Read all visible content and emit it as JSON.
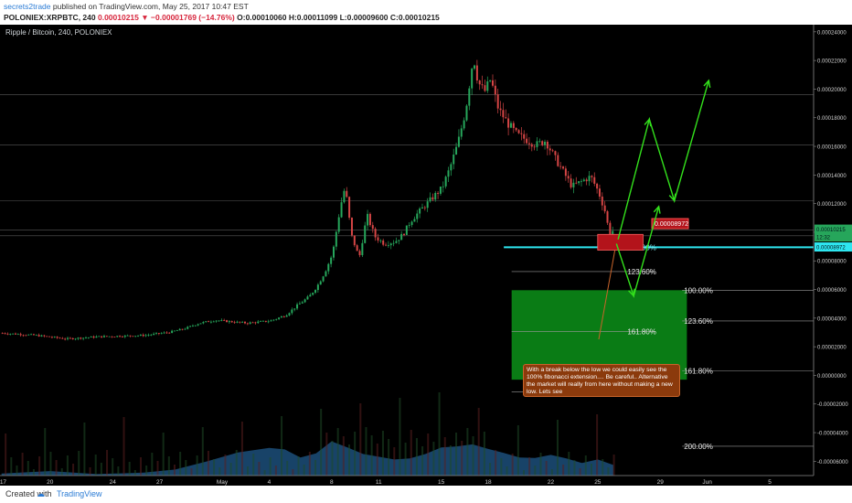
{
  "header": {
    "user": "secrets2trade",
    "published": "published on TradingView.com, May 25, 2017 10:47 EST",
    "symbol": "POLONIEX:XRPBTC, 240",
    "last": "0.00010215",
    "change": "▼ −0.00001769 (−14.76%)",
    "ohlc": "O:0.00010060  H:0.00011099  L:0.00009600  C:0.00010215"
  },
  "chart_title": "Ripple / Bitcoin, 240, POLONIEX",
  "footer": {
    "created": "Created with",
    "brand": "TradingView",
    "logo_glyph": "☁"
  },
  "colors": {
    "background": "#000000",
    "up_candle": "#26a65b",
    "down_candle": "#d64545",
    "fib_line": "#2ee6f0",
    "arrow": "#33e01c",
    "box": "#0b8a17",
    "annotation": "#8b3a0c",
    "volume_area": "#1c4f7a"
  },
  "annotation_text": "With a break below the low we could easily see the 100% fibonacci extension.... Be careful.. Alternative the market will really from here without making a new low. Lets see",
  "chart_data": {
    "type": "candlestick",
    "title": "Ripple / Bitcoin, 240, POLONIEX",
    "ylim": [
      -7e-05,
      0.000245
    ],
    "y_ticks": [
      "0.00024000",
      "0.00022000",
      "0.00020000",
      "0.00018000",
      "0.00016000",
      "0.00014000",
      "0.00012000",
      "0.00010000",
      "0.00008000",
      "0.00006000",
      "0.00004000",
      "0.00002000",
      "0.00000000",
      "-0.00002000",
      "-0.00004000",
      "-0.00006000"
    ],
    "y_tick_values": [
      0.00024,
      0.00022,
      0.0002,
      0.00018,
      0.00016,
      0.00014,
      0.00012,
      0.0001,
      8e-05,
      6e-05,
      4e-05,
      2e-05,
      0.0,
      -2e-05,
      -4e-05,
      -6e-05
    ],
    "x_ticks": [
      "17",
      "20",
      "24",
      "27",
      "May",
      "4",
      "8",
      "11",
      "15",
      "18",
      "22",
      "25",
      "29",
      "Jun",
      "5"
    ],
    "x_tick_days": [
      17,
      20,
      24,
      27,
      31,
      34,
      38,
      41,
      45,
      48,
      52,
      55,
      59,
      62,
      66
    ],
    "x_range_days": [
      16.8,
      68.8
    ],
    "price_labels": [
      {
        "text": "0.00010215",
        "value": 0.00010215,
        "color": "#26a65b"
      },
      {
        "text": "12:32",
        "value": 9.67e-05,
        "color": "#26a65b"
      },
      {
        "text": "0.00008972",
        "value": 8.972e-05,
        "color": "#2ee6f0"
      }
    ],
    "close_path": [
      [
        16.9,
        2.95e-05
      ],
      [
        19,
        2.8e-05
      ],
      [
        21,
        2.55e-05
      ],
      [
        23,
        2.7e-05
      ],
      [
        26,
        2.8e-05
      ],
      [
        27.5,
        3e-05
      ],
      [
        28.5,
        3.25e-05
      ],
      [
        29.5,
        3.65e-05
      ],
      [
        30.5,
        3.85e-05
      ],
      [
        31.5,
        3.75e-05
      ],
      [
        32.5,
        3.65e-05
      ],
      [
        34,
        3.8e-05
      ],
      [
        35,
        4.2e-05
      ],
      [
        35.7,
        4.85e-05
      ],
      [
        36.5,
        5.5e-05
      ],
      [
        37,
        6.2e-05
      ],
      [
        37.5,
        7.2e-05
      ],
      [
        38,
        8.5e-05
      ],
      [
        38.5,
        0.000118
      ],
      [
        38.8,
        0.000132
      ],
      [
        39.2,
        9.8e-05
      ],
      [
        39.7,
        8.2e-05
      ],
      [
        40.2,
        0.000112
      ],
      [
        40.7,
        9.7e-05
      ],
      [
        41.3,
        9.2e-05
      ],
      [
        42,
        9.35e-05
      ],
      [
        42.5,
        9.85e-05
      ],
      [
        43,
        0.000108
      ],
      [
        43.5,
        0.000114
      ],
      [
        44.2,
        0.000122
      ],
      [
        45,
        0.000131
      ],
      [
        45.5,
        0.000145
      ],
      [
        46,
        0.000162
      ],
      [
        46.5,
        0.000185
      ],
      [
        46.8,
        0.000208
      ],
      [
        47,
        0.000223
      ],
      [
        47.3,
        0.000205
      ],
      [
        47.7,
        0.000198
      ],
      [
        48.1,
        0.000207
      ],
      [
        48.6,
        0.000186
      ],
      [
        49.2,
        0.000176
      ],
      [
        49.8,
        0.000168
      ],
      [
        50.5,
        0.000164
      ],
      [
        51,
        0.000161
      ],
      [
        51.6,
        0.000164
      ],
      [
        52.2,
        0.000152
      ],
      [
        52.7,
        0.000143
      ],
      [
        53.3,
        0.000132
      ],
      [
        54,
        0.000136
      ],
      [
        54.5,
        0.000139
      ],
      [
        55,
        0.000128
      ],
      [
        55.4,
        0.000115
      ],
      [
        55.7,
        9.9e-05
      ],
      [
        56,
        0.000102
      ]
    ],
    "volume_band": [
      [
        16.9,
        0.4
      ],
      [
        20,
        0.9
      ],
      [
        23,
        0.3
      ],
      [
        26,
        0.6
      ],
      [
        28,
        1.2
      ],
      [
        30,
        2.8
      ],
      [
        32,
        4.6
      ],
      [
        34,
        5.5
      ],
      [
        35,
        5.2
      ],
      [
        36,
        3.6
      ],
      [
        37,
        4.4
      ],
      [
        38,
        6.8
      ],
      [
        39,
        5.6
      ],
      [
        40,
        4.3
      ],
      [
        42,
        3.2
      ],
      [
        43,
        3.4
      ],
      [
        44,
        4.3
      ],
      [
        45,
        5.6
      ],
      [
        46,
        5.8
      ],
      [
        47,
        6.2
      ],
      [
        48,
        5.3
      ],
      [
        49,
        4.5
      ],
      [
        50,
        3.6
      ],
      [
        51,
        3.5
      ],
      [
        52,
        4.1
      ],
      [
        53,
        3.4
      ],
      [
        54,
        2.5
      ],
      [
        55,
        3.2
      ],
      [
        56,
        2.1
      ]
    ],
    "horizontal_lines": [
      9.75e-05,
      0.0001015,
      0.000122,
      0.000161,
      0.000196
    ],
    "fib_levels": [
      {
        "label": "100.00%",
        "value": 8.95e-05,
        "highlight": true
      },
      {
        "label": "123.60%",
        "value": 7.25e-05
      },
      {
        "label": "161.80%",
        "value": 3.05e-05
      },
      {
        "label": "200.00%",
        "value": -1.15e-05
      },
      {
        "label": "100.00%",
        "value": 5.95e-05,
        "side": "right"
      },
      {
        "label": "123.60%",
        "value": 3.8e-05,
        "side": "right"
      },
      {
        "label": "161.80%",
        "value": 3e-06,
        "side": "right"
      },
      {
        "label": "200.00%",
        "value": -4.95e-05,
        "side": "right"
      }
    ],
    "box": {
      "x": [
        49.5,
        60.7
      ],
      "y": [
        5.95e-05,
        -3e-06
      ]
    },
    "marker_price": {
      "text": "0.00008972",
      "value": 8.972e-05
    },
    "projection_up": [
      [
        56.3,
        9.5e-05
      ],
      [
        58.3,
        0.000179
      ],
      [
        59.9,
        0.000122
      ],
      [
        62.1,
        0.000206
      ]
    ],
    "projection_alt": [
      [
        56.2,
        9.2e-05
      ],
      [
        57.3,
        5.55e-05
      ],
      [
        58.9,
        0.000118
      ]
    ]
  }
}
